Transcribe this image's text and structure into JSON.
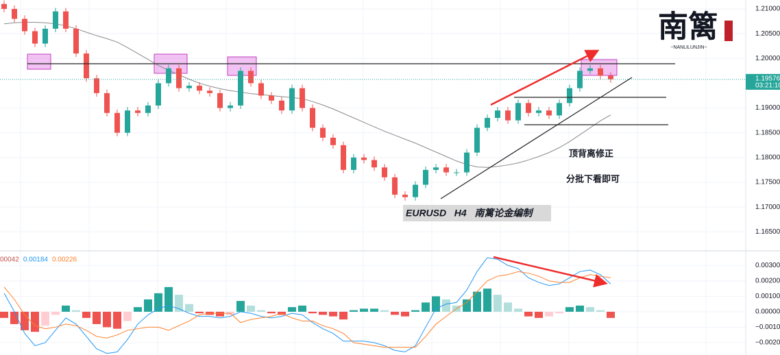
{
  "chart_data": [
    {
      "type": "candlestick",
      "title": "EURUSD   H4   南篱论金编制",
      "annotations": [
        "顶背离修正",
        "分批下看即可"
      ],
      "up_color": "#26a69a",
      "down_color": "#ef5350",
      "open": [
        1.211,
        1.21,
        1.208,
        1.2055,
        1.203,
        1.206,
        1.2095,
        1.206,
        1.201,
        1.196,
        1.193,
        1.189,
        1.185,
        1.1895,
        1.189,
        1.1905,
        1.195,
        1.198,
        1.194,
        1.1945,
        1.1935,
        1.193,
        1.19,
        1.1905,
        1.1975,
        1.195,
        1.1925,
        1.1915,
        1.1895,
        1.194,
        1.19,
        1.186,
        1.184,
        1.1825,
        1.1775,
        1.18,
        1.1795,
        1.178,
        1.176,
        1.1725,
        1.172,
        1.1745,
        1.1775,
        1.178,
        1.177,
        1.177,
        1.181,
        1.186,
        1.188,
        1.1895,
        1.1875,
        1.191,
        1.189,
        1.1895,
        1.1885,
        1.191,
        1.194,
        1.1975,
        1.198,
        1.1965
      ],
      "high": [
        1.2117,
        1.2107,
        1.2087,
        1.2062,
        1.2067,
        1.2102,
        1.2102,
        1.2067,
        1.2017,
        1.1967,
        1.1937,
        1.1897,
        1.1902,
        1.1902,
        1.1912,
        1.1957,
        1.1987,
        1.1987,
        1.1952,
        1.1952,
        1.1942,
        1.1937,
        1.1912,
        1.1982,
        1.1982,
        1.1957,
        1.1932,
        1.1922,
        1.1947,
        1.1947,
        1.1907,
        1.1867,
        1.1847,
        1.1832,
        1.1807,
        1.1807,
        1.1802,
        1.1787,
        1.1767,
        1.1732,
        1.1752,
        1.1782,
        1.1787,
        1.1787,
        1.1777,
        1.1817,
        1.1867,
        1.1887,
        1.1902,
        1.1902,
        1.1917,
        1.1917,
        1.1902,
        1.1902,
        1.1917,
        1.1947,
        1.1982,
        1.1987,
        1.1987,
        1.1972
      ],
      "low": [
        1.2093,
        1.2073,
        1.2048,
        1.2023,
        1.2023,
        1.2053,
        1.2053,
        1.2003,
        1.1953,
        1.1923,
        1.1883,
        1.1843,
        1.1843,
        1.1883,
        1.1883,
        1.1898,
        1.1943,
        1.1933,
        1.1933,
        1.1928,
        1.1923,
        1.1893,
        1.1893,
        1.1898,
        1.1943,
        1.1918,
        1.1908,
        1.1888,
        1.1888,
        1.1893,
        1.1853,
        1.1833,
        1.1818,
        1.1768,
        1.1768,
        1.1788,
        1.1773,
        1.1753,
        1.1718,
        1.1713,
        1.1713,
        1.1738,
        1.1768,
        1.1763,
        1.1763,
        1.1763,
        1.1803,
        1.1853,
        1.1873,
        1.1868,
        1.1868,
        1.1883,
        1.1883,
        1.1878,
        1.1878,
        1.1903,
        1.1933,
        1.1968,
        1.1958,
        1.1951
      ],
      "close": [
        1.21,
        1.208,
        1.2055,
        1.203,
        1.206,
        1.2095,
        1.206,
        1.201,
        1.196,
        1.193,
        1.189,
        1.185,
        1.1895,
        1.189,
        1.1905,
        1.195,
        1.198,
        1.194,
        1.1945,
        1.1935,
        1.193,
        1.19,
        1.1905,
        1.1975,
        1.195,
        1.1925,
        1.1915,
        1.1895,
        1.194,
        1.19,
        1.186,
        1.184,
        1.1825,
        1.1775,
        1.18,
        1.1795,
        1.178,
        1.176,
        1.1725,
        1.172,
        1.1745,
        1.1775,
        1.178,
        1.177,
        1.177,
        1.181,
        1.186,
        1.188,
        1.1895,
        1.1875,
        1.191,
        1.189,
        1.1895,
        1.1885,
        1.191,
        1.194,
        1.1975,
        1.198,
        1.1965,
        1.1958
      ],
      "ma": {
        "color": "#8a8a8a",
        "values": [
          1.207,
          1.2072,
          1.2073,
          1.2073,
          1.2072,
          1.207,
          1.2066,
          1.206,
          1.2053,
          1.2046,
          1.204,
          1.2033,
          1.2022,
          1.201,
          1.1998,
          1.1986,
          1.1976,
          1.1967,
          1.1958,
          1.195,
          1.1944,
          1.1939,
          1.1935,
          1.1932,
          1.1929,
          1.1927,
          1.1925,
          1.1923,
          1.1921,
          1.1919,
          1.1913,
          1.1906,
          1.1898,
          1.1889,
          1.188,
          1.1871,
          1.1862,
          1.1853,
          1.1845,
          1.1837,
          1.1829,
          1.182,
          1.1811,
          1.1802,
          1.1793,
          1.1786,
          1.1781,
          1.178,
          1.1782,
          1.1785,
          1.1789,
          1.1795,
          1.1802,
          1.181,
          1.182,
          1.1832,
          1.1846,
          1.186,
          1.1874,
          1.1886
        ]
      },
      "ylim": [
        1.1613,
        1.2118
      ],
      "yticks": [
        {
          "value": 1.21,
          "label": "1.21000"
        },
        {
          "value": 1.205,
          "label": "1.20500"
        },
        {
          "value": 1.2,
          "label": "1.20000"
        },
        {
          "value": 1.19,
          "label": "1.19000"
        },
        {
          "value": 1.185,
          "label": "1.18500"
        },
        {
          "value": 1.18,
          "label": "1.18000"
        },
        {
          "value": 1.175,
          "label": "1.17500"
        },
        {
          "value": 1.17,
          "label": "1.17000"
        },
        {
          "value": 1.165,
          "label": "1.16500"
        }
      ],
      "last_price": 1.19576,
      "countdown": "03:21:10",
      "grid": true
    },
    {
      "type": "macd",
      "legend_values": [
        "00042",
        "0.00184",
        "0.00226"
      ],
      "legend_colors": [
        "#c0504d",
        "#2196f3",
        "#ff7f2a"
      ],
      "histogram": [
        -0.0004,
        -0.0008,
        -0.0012,
        -0.0013,
        -0.0009,
        -0.0002,
        0.0004,
        0.0001,
        -0.0004,
        -0.0008,
        -0.001,
        -0.0011,
        -0.0006,
        0.0003,
        0.0008,
        0.0012,
        0.0016,
        0.0011,
        0.0005,
        -0.0001,
        -0.0002,
        -0.0003,
        -0.0002,
        0.0007,
        0.0004,
        0.0001,
        -0.0001,
        -0.0002,
        0.0003,
        0.0004,
        -0.0001,
        -0.0002,
        -0.0003,
        -0.0005,
        0.0001,
        0.0002,
        0.0002,
        0.0001,
        -0.0002,
        -0.0003,
        0.0001,
        0.0006,
        0.001,
        0.0008,
        0.0004,
        0.0008,
        0.0013,
        0.0015,
        0.0011,
        0.0006,
        0.0002,
        -0.0003,
        -0.0004,
        -0.0003,
        -0.0001,
        0.0003,
        0.0004,
        0.0003,
        0.0001,
        -0.0004
      ],
      "macd": {
        "color": "#2196f3",
        "values": [
          0.0012,
          0.0,
          -0.0014,
          -0.0022,
          -0.002,
          -0.0012,
          -0.0004,
          -0.0008,
          -0.0016,
          -0.0024,
          -0.0027,
          -0.0026,
          -0.0018,
          -0.0008,
          -0.0002,
          0.0002,
          0.0004,
          0.0002,
          -0.0001,
          -0.0003,
          -0.0003,
          -0.0004,
          -0.0003,
          0.0,
          -0.0001,
          -0.0003,
          -0.0004,
          -0.0003,
          -0.0001,
          -0.0002,
          -0.0007,
          -0.0011,
          -0.0014,
          -0.0019,
          -0.0019,
          -0.0019,
          -0.002,
          -0.0022,
          -0.0025,
          -0.0026,
          -0.0022,
          -0.001,
          0.0002,
          0.0005,
          0.0006,
          0.0014,
          0.0026,
          0.0035,
          0.0034,
          0.003,
          0.0028,
          0.0022,
          0.0019,
          0.0017,
          0.0018,
          0.0022,
          0.0026,
          0.0027,
          0.0024,
          0.0018
        ]
      },
      "signal": {
        "color": "#ff7f2a",
        "values": [
          0.0016,
          0.0008,
          -0.0002,
          -0.0009,
          -0.0011,
          -0.001,
          -0.0008,
          -0.0009,
          -0.0012,
          -0.0016,
          -0.0017,
          -0.0015,
          -0.0012,
          -0.0011,
          -0.001,
          -0.001,
          -0.0012,
          -0.0009,
          -0.0006,
          -0.0002,
          -0.0001,
          -0.0001,
          -0.0001,
          -0.0007,
          -0.0005,
          -0.0004,
          -0.0003,
          -0.0001,
          -0.0004,
          -0.0006,
          -0.0006,
          -0.0009,
          -0.0011,
          -0.0014,
          -0.002,
          -0.0021,
          -0.0022,
          -0.0023,
          -0.0023,
          -0.0023,
          -0.0023,
          -0.0016,
          -0.0008,
          -0.0003,
          0.0002,
          0.0006,
          0.0013,
          0.002,
          0.0023,
          0.0024,
          0.0026,
          0.0025,
          0.0023,
          0.002,
          0.0019,
          0.0019,
          0.0022,
          0.0024,
          0.0023,
          0.0022
        ]
      },
      "ylim": [
        -0.0028,
        0.0039
      ],
      "yticks": [
        {
          "value": 0.003,
          "label": "0.00300"
        },
        {
          "value": 0.002,
          "label": "0.00200"
        },
        {
          "value": 0.001,
          "label": "0.00100"
        },
        {
          "value": 0,
          "label": "0.00000"
        },
        {
          "value": -0.001,
          "label": "−0.00100"
        },
        {
          "value": -0.002,
          "label": "−0.00200"
        }
      ],
      "grid": true
    }
  ],
  "logo": {
    "title": "南篱",
    "subtitle": "~NANLILUNJIN~"
  }
}
